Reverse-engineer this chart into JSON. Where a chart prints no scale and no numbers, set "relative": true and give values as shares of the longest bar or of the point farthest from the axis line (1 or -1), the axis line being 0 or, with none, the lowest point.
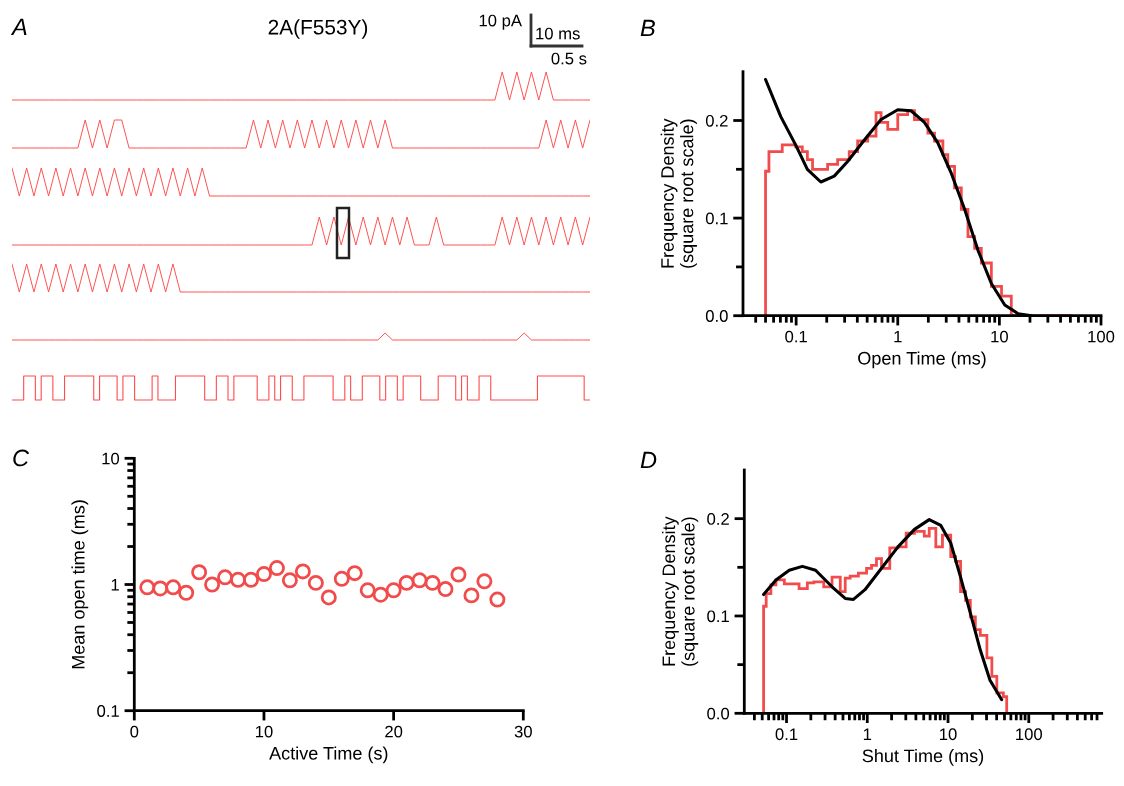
{
  "chart_data": [
    {
      "type": "line",
      "title": "2A(F553Y)",
      "annotations": [
        "A",
        "10 pA",
        "10 ms",
        "0.5 s"
      ],
      "relative": true,
      "tick_labels": false,
      "color": "#ff4d4d",
      "categories": [
        null,
        null,
        null,
        null,
        null,
        null,
        null,
        null,
        null,
        null,
        null,
        null,
        null,
        null,
        null,
        null,
        null,
        null,
        null,
        null,
        null,
        null,
        null,
        null,
        null,
        null,
        null,
        null,
        null,
        null,
        null,
        null,
        null,
        null,
        null,
        null,
        null,
        null,
        null,
        null,
        null,
        null,
        null,
        null,
        null,
        null,
        null,
        null,
        null,
        null,
        null,
        null,
        null,
        null,
        null,
        null,
        null,
        null,
        null,
        null,
        null,
        null,
        null,
        null,
        null,
        null,
        null,
        null,
        null,
        null,
        null,
        null,
        null,
        null,
        null,
        null,
        null,
        null,
        null,
        null
      ],
      "values": [
        0,
        0,
        0,
        0,
        0,
        0,
        0,
        0,
        0,
        0,
        0,
        0,
        0,
        0,
        0,
        0,
        0,
        0,
        0,
        0,
        0,
        0,
        0,
        0,
        0,
        0,
        0,
        0,
        0,
        0,
        0,
        0,
        0,
        0,
        0,
        0,
        0,
        0,
        0,
        0,
        0,
        0,
        0,
        0,
        0,
        0,
        0,
        0,
        0,
        0,
        0,
        0,
        0,
        0,
        0,
        0,
        0,
        0,
        0,
        0,
        0,
        0,
        0,
        0,
        0,
        0,
        0,
        1,
        0,
        1,
        0,
        1,
        0,
        1,
        0,
        0,
        0,
        0,
        0,
        0
      ]
    },
    {
      "type": "line",
      "relative": true,
      "tick_labels": false,
      "color": "#ff4d4d",
      "categories": [
        null,
        null,
        null,
        null,
        null,
        null,
        null,
        null,
        null,
        null,
        null,
        null,
        null,
        null,
        null,
        null,
        null,
        null,
        null,
        null,
        null,
        null,
        null,
        null,
        null,
        null,
        null,
        null,
        null,
        null,
        null,
        null,
        null,
        null,
        null,
        null,
        null,
        null,
        null,
        null,
        null,
        null,
        null,
        null,
        null,
        null,
        null,
        null,
        null,
        null,
        null,
        null,
        null,
        null,
        null,
        null,
        null,
        null,
        null,
        null,
        null,
        null,
        null,
        null,
        null,
        null,
        null,
        null,
        null,
        null,
        null,
        null,
        null,
        null,
        null,
        null,
        null,
        null,
        null,
        null
      ],
      "values": [
        0,
        0,
        0,
        0,
        0,
        0,
        0,
        0,
        0,
        0,
        1,
        0,
        1,
        0,
        1,
        1,
        0,
        0,
        0,
        0,
        0,
        0,
        0,
        0,
        0,
        0,
        0,
        0,
        0,
        0,
        0,
        0,
        0,
        1,
        0,
        1,
        0,
        1,
        0,
        1,
        0,
        1,
        0,
        1,
        0,
        1,
        0,
        1,
        0,
        1,
        0,
        1,
        0,
        0,
        0,
        0,
        0,
        0,
        0,
        0,
        0,
        0,
        0,
        0,
        0,
        0,
        0,
        0,
        0,
        0,
        0,
        0,
        0,
        1,
        0,
        1,
        0,
        1,
        0,
        1
      ]
    },
    {
      "type": "line",
      "relative": true,
      "tick_labels": false,
      "color": "#ff4d4d",
      "categories": [
        null,
        null,
        null,
        null,
        null,
        null,
        null,
        null,
        null,
        null,
        null,
        null,
        null,
        null,
        null,
        null,
        null,
        null,
        null,
        null,
        null,
        null,
        null,
        null,
        null,
        null,
        null,
        null,
        null,
        null,
        null,
        null,
        null,
        null,
        null,
        null,
        null,
        null,
        null,
        null,
        null,
        null,
        null,
        null,
        null,
        null,
        null,
        null,
        null,
        null,
        null,
        null,
        null,
        null,
        null,
        null,
        null,
        null,
        null,
        null,
        null,
        null,
        null,
        null,
        null,
        null,
        null,
        null,
        null,
        null,
        null,
        null,
        null,
        null,
        null,
        null,
        null,
        null,
        null,
        null
      ],
      "values": [
        1,
        0,
        1,
        0,
        1,
        0,
        1,
        0,
        1,
        0,
        1,
        0,
        1,
        0,
        1,
        0,
        1,
        0,
        1,
        0,
        1,
        0,
        1,
        0,
        1,
        0,
        1,
        0,
        0,
        0,
        0,
        0,
        0,
        0,
        0,
        0,
        0,
        0,
        0,
        0,
        0,
        0,
        0,
        0,
        0,
        0,
        0,
        0,
        0,
        0,
        0,
        0,
        0,
        0,
        0,
        0,
        0,
        0,
        0,
        0,
        0,
        0,
        0,
        0,
        0,
        0,
        0,
        0,
        0,
        0,
        0,
        0,
        0,
        0,
        0,
        0,
        0,
        0,
        0,
        0
      ]
    },
    {
      "type": "line",
      "relative": true,
      "tick_labels": false,
      "color": "#ff4d4d",
      "categories": [
        null,
        null,
        null,
        null,
        null,
        null,
        null,
        null,
        null,
        null,
        null,
        null,
        null,
        null,
        null,
        null,
        null,
        null,
        null,
        null,
        null,
        null,
        null,
        null,
        null,
        null,
        null,
        null,
        null,
        null,
        null,
        null,
        null,
        null,
        null,
        null,
        null,
        null,
        null,
        null,
        null,
        null,
        null,
        null,
        null,
        null,
        null,
        null,
        null,
        null,
        null,
        null,
        null,
        null,
        null,
        null,
        null,
        null,
        null,
        null,
        null,
        null,
        null,
        null,
        null,
        null,
        null,
        null,
        null,
        null,
        null,
        null,
        null,
        null,
        null,
        null,
        null,
        null,
        null,
        null
      ],
      "values": [
        0,
        0,
        0,
        0,
        0,
        0,
        0,
        0,
        0,
        0,
        0,
        0,
        0,
        0,
        0,
        0,
        0,
        0,
        0,
        0,
        0,
        0,
        0,
        0,
        0,
        0,
        0,
        0,
        0,
        0,
        0,
        0,
        0,
        0,
        0,
        0,
        0,
        0,
        0,
        0,
        0,
        0,
        1,
        0,
        1,
        0,
        1,
        0,
        1,
        0,
        1,
        0,
        1,
        0,
        1,
        0,
        0,
        0,
        1,
        0,
        0,
        0,
        0,
        0,
        0,
        0,
        0,
        1,
        0,
        1,
        0,
        1,
        0,
        1,
        0,
        1,
        0,
        1,
        0,
        1
      ]
    },
    {
      "type": "line",
      "relative": true,
      "tick_labels": false,
      "color": "#ff4d4d",
      "categories": [
        null,
        null,
        null,
        null,
        null,
        null,
        null,
        null,
        null,
        null,
        null,
        null,
        null,
        null,
        null,
        null,
        null,
        null,
        null,
        null,
        null,
        null,
        null,
        null,
        null,
        null,
        null,
        null,
        null,
        null,
        null,
        null,
        null,
        null,
        null,
        null,
        null,
        null,
        null,
        null,
        null,
        null,
        null,
        null,
        null,
        null,
        null,
        null,
        null,
        null,
        null,
        null,
        null,
        null,
        null,
        null,
        null,
        null,
        null,
        null,
        null,
        null,
        null,
        null,
        null,
        null,
        null,
        null,
        null,
        null,
        null,
        null,
        null,
        null,
        null,
        null,
        null,
        null,
        null,
        null
      ],
      "values": [
        1,
        0,
        1,
        0,
        1,
        0,
        1,
        0,
        1,
        0,
        1,
        0,
        1,
        0,
        1,
        0,
        1,
        0,
        1,
        0,
        1,
        0,
        1,
        0,
        0,
        0,
        0,
        0,
        0,
        0,
        0,
        0,
        0,
        0,
        0,
        0,
        0,
        0,
        0,
        0,
        0,
        0,
        0,
        0,
        0,
        0,
        0,
        0,
        0,
        0,
        0,
        0,
        0,
        0,
        0,
        0,
        0,
        0,
        0,
        0,
        0,
        0,
        0,
        0,
        0,
        0,
        0,
        0,
        0,
        0,
        0,
        0,
        0,
        0,
        0,
        0,
        0,
        0,
        0,
        0
      ]
    },
    {
      "type": "line",
      "relative": true,
      "tick_labels": false,
      "color": "#ff4d4d",
      "categories": [
        null,
        null,
        null,
        null,
        null,
        null,
        null,
        null,
        null,
        null,
        null,
        null,
        null,
        null,
        null,
        null,
        null,
        null,
        null,
        null,
        null,
        null,
        null,
        null,
        null,
        null,
        null,
        null,
        null,
        null,
        null,
        null,
        null,
        null,
        null,
        null,
        null,
        null,
        null,
        null,
        null,
        null,
        null,
        null,
        null,
        null,
        null,
        null,
        null,
        null,
        null,
        null,
        null,
        null,
        null,
        null,
        null,
        null,
        null,
        null,
        null,
        null,
        null,
        null,
        null,
        null,
        null,
        null,
        null,
        null,
        null,
        null,
        null,
        null,
        null,
        null,
        null,
        null,
        null,
        null
      ],
      "values": [
        0,
        0,
        0,
        0,
        0,
        0,
        0,
        0,
        0,
        0,
        0,
        0,
        0,
        0,
        0,
        0,
        0,
        0,
        0,
        0,
        0,
        0,
        0,
        0,
        0,
        0,
        0,
        0,
        0,
        0,
        0,
        0,
        0,
        0,
        0,
        0,
        0,
        0,
        0,
        0,
        0,
        0,
        0,
        0,
        0,
        0,
        0,
        0,
        0,
        0,
        0,
        1,
        0,
        0,
        0,
        0,
        0,
        0,
        0,
        0,
        0,
        0,
        0,
        0,
        0,
        0,
        0,
        0,
        0,
        0,
        1,
        0,
        0,
        0,
        0,
        0,
        0,
        0,
        0,
        0
      ]
    },
    {
      "type": "step",
      "relative": true,
      "tick_labels": false,
      "color": "#ff4d4d",
      "categories": [
        null,
        null,
        null,
        null,
        null,
        null,
        null,
        null,
        null,
        null,
        null,
        null,
        null,
        null,
        null,
        null,
        null,
        null,
        null,
        null,
        null,
        null,
        null,
        null,
        null,
        null,
        null,
        null,
        null,
        null,
        null,
        null,
        null,
        null,
        null,
        null,
        null,
        null,
        null,
        null,
        null,
        null,
        null,
        null,
        null,
        null,
        null,
        null,
        null,
        null,
        null,
        null,
        null,
        null,
        null,
        null,
        null,
        null,
        null,
        null,
        null,
        null,
        null,
        null,
        null,
        null,
        null,
        null,
        null,
        null,
        null,
        null,
        null,
        null,
        null,
        null,
        null,
        null,
        null,
        null,
        null,
        null,
        null,
        null,
        null,
        null,
        null,
        null,
        null,
        null,
        null,
        null,
        null,
        null,
        null,
        null,
        null,
        null,
        null,
        null
      ],
      "values": [
        0,
        0,
        1,
        1,
        0,
        1,
        1,
        0,
        0,
        1,
        1,
        1,
        1,
        1,
        0,
        1,
        1,
        1,
        0,
        1,
        1,
        0,
        0,
        0,
        1,
        0,
        0,
        0,
        1,
        1,
        1,
        1,
        1,
        0,
        0,
        1,
        1,
        0,
        1,
        1,
        1,
        1,
        0,
        0,
        1,
        0,
        1,
        1,
        0,
        0,
        1,
        1,
        1,
        1,
        1,
        0,
        0,
        1,
        0,
        0,
        1,
        1,
        1,
        0,
        1,
        1,
        0,
        1,
        1,
        1,
        0,
        0,
        0,
        1,
        1,
        1,
        0,
        1,
        0,
        0,
        1,
        1,
        0,
        0,
        0,
        0,
        0,
        0,
        0,
        0,
        1,
        1,
        1,
        1,
        1,
        1,
        1,
        1,
        0,
        0
      ]
    },
    {
      "type": "histogram",
      "annotations": [
        "B"
      ],
      "xlabel": "Open Time (ms)",
      "ylabel": "Frequency Density\n(square root scale)",
      "log": "x",
      "xlim": [
        0.03,
        100
      ],
      "ylim": [
        0,
        0.25
      ],
      "xticks": [
        {
          "value": 0.04,
          "label": null
        },
        {
          "value": 0.05,
          "label": null
        },
        {
          "value": 0.06,
          "label": null
        },
        {
          "value": 0.07,
          "label": null
        },
        {
          "value": 0.08,
          "label": null
        },
        {
          "value": 0.09,
          "label": null
        },
        0.1,
        {
          "value": 0.2,
          "label": null
        },
        {
          "value": 0.3,
          "label": null
        },
        {
          "value": 0.4,
          "label": null
        },
        {
          "value": 0.5,
          "label": null
        },
        {
          "value": 0.6,
          "label": null
        },
        {
          "value": 0.7,
          "label": null
        },
        {
          "value": 0.8,
          "label": null
        },
        {
          "value": 0.9,
          "label": null
        },
        1,
        {
          "value": 2,
          "label": null
        },
        {
          "value": 3,
          "label": null
        },
        {
          "value": 4,
          "label": null
        },
        {
          "value": 5,
          "label": null
        },
        {
          "value": 6,
          "label": null
        },
        {
          "value": 7,
          "label": null
        },
        {
          "value": 8,
          "label": null
        },
        {
          "value": 9,
          "label": null
        },
        10,
        {
          "value": 20,
          "label": null
        },
        {
          "value": 30,
          "label": null
        },
        {
          "value": 40,
          "label": null
        },
        {
          "value": 50,
          "label": null
        },
        {
          "value": 60,
          "label": null
        },
        {
          "value": 70,
          "label": null
        },
        {
          "value": 80,
          "label": null
        },
        {
          "value": 90,
          "label": null
        },
        100
      ],
      "yticks": [
        {
          "value": 0,
          "label": "0.0"
        },
        {
          "value": 0.05,
          "label": null
        },
        0.1,
        {
          "value": 0.15,
          "label": null
        },
        0.2
      ],
      "series": [
        {
          "type": "histogram",
          "color": "#f24b4b",
          "bins": [
            0.05,
            0.054,
            0.073,
            0.099,
            0.115,
            0.129,
            0.145,
            0.204,
            0.256,
            0.333,
            0.403,
            0.506,
            0.611,
            0.685,
            0.797,
            1.0,
            1.25,
            1.46,
            1.98,
            2.3,
            2.78,
            3.11,
            3.62,
            4.22,
            4.91,
            5.71,
            6.64,
            8.34,
            10.5,
            13.1,
            51.4
          ],
          "values": [
            0.148,
            0.168,
            0.175,
            0.173,
            0.168,
            0.16,
            0.15,
            0.155,
            0.16,
            0.168,
            0.179,
            0.184,
            0.208,
            0.198,
            0.191,
            0.206,
            0.21,
            0.201,
            0.187,
            0.179,
            0.165,
            0.153,
            0.131,
            0.109,
            0.081,
            0.069,
            0.054,
            0.03,
            0.02,
            0
          ]
        },
        {
          "type": "line",
          "color": "#000000",
          "x": [
            0.05,
            0.0706,
            0.1,
            0.129,
            0.175,
            0.237,
            0.321,
            0.469,
            0.685,
            1.0,
            1.35,
            1.83,
            2.48,
            3.36,
            4.55,
            6.16,
            8.34,
            11.3,
            15.3,
            20.7
          ],
          "values": [
            0.242,
            0.204,
            0.174,
            0.15,
            0.137,
            0.143,
            0.158,
            0.18,
            0.201,
            0.211,
            0.21,
            0.198,
            0.177,
            0.146,
            0.109,
            0.067,
            0.033,
            0.011,
            0.002,
            0.0
          ]
        }
      ]
    },
    {
      "type": "scatter",
      "annotations": [
        "C"
      ],
      "xlabel": "Active Time (s)",
      "ylabel": "Mean open time (ms)",
      "log": "y",
      "marker": "circle",
      "color": "#f24b4b",
      "xlim": [
        0,
        30
      ],
      "ylim": [
        0.1,
        10
      ],
      "xticks": [
        0,
        10,
        20,
        30
      ],
      "yticks": [
        0.1,
        {
          "value": 0.2,
          "label": null
        },
        {
          "value": 0.3,
          "label": null
        },
        {
          "value": 0.4,
          "label": null
        },
        {
          "value": 0.5,
          "label": null
        },
        {
          "value": 0.6,
          "label": null
        },
        {
          "value": 0.7,
          "label": null
        },
        {
          "value": 0.8,
          "label": null
        },
        {
          "value": 0.9,
          "label": null
        },
        1,
        {
          "value": 2,
          "label": null
        },
        {
          "value": 3,
          "label": null
        },
        {
          "value": 4,
          "label": null
        },
        {
          "value": 5,
          "label": null
        },
        {
          "value": 6,
          "label": null
        },
        {
          "value": 7,
          "label": null
        },
        {
          "value": 8,
          "label": null
        },
        {
          "value": 9,
          "label": null
        },
        10
      ],
      "x": [
        1,
        2,
        3,
        4,
        5,
        6,
        7,
        8,
        9,
        10,
        11,
        12,
        13,
        14,
        15,
        16,
        17,
        18,
        19,
        20,
        21,
        22,
        23,
        24,
        25,
        26,
        27,
        28
      ],
      "values": [
        0.95,
        0.93,
        0.95,
        0.86,
        1.25,
        1.0,
        1.14,
        1.09,
        1.09,
        1.21,
        1.35,
        1.08,
        1.27,
        1.03,
        0.79,
        1.11,
        1.23,
        0.9,
        0.83,
        0.9,
        1.03,
        1.08,
        1.03,
        0.92,
        1.2,
        0.82,
        1.06,
        0.76
      ]
    },
    {
      "type": "histogram",
      "annotations": [
        "D"
      ],
      "xlabel": "Shut Time (ms)",
      "ylabel": "Frequency Density\n(square root scale)",
      "log": "x",
      "xlim": [
        0.03,
        800
      ],
      "ylim": [
        0,
        0.25
      ],
      "xticks": [
        {
          "value": 0.04,
          "label": null
        },
        {
          "value": 0.05,
          "label": null
        },
        {
          "value": 0.06,
          "label": null
        },
        {
          "value": 0.07,
          "label": null
        },
        {
          "value": 0.08,
          "label": null
        },
        {
          "value": 0.09,
          "label": null
        },
        0.1,
        {
          "value": 0.2,
          "label": null
        },
        {
          "value": 0.3,
          "label": null
        },
        {
          "value": 0.4,
          "label": null
        },
        {
          "value": 0.5,
          "label": null
        },
        {
          "value": 0.6,
          "label": null
        },
        {
          "value": 0.7,
          "label": null
        },
        {
          "value": 0.8,
          "label": null
        },
        {
          "value": 0.9,
          "label": null
        },
        1,
        {
          "value": 2,
          "label": null
        },
        {
          "value": 3,
          "label": null
        },
        {
          "value": 4,
          "label": null
        },
        {
          "value": 5,
          "label": null
        },
        {
          "value": 6,
          "label": null
        },
        {
          "value": 7,
          "label": null
        },
        {
          "value": 8,
          "label": null
        },
        {
          "value": 9,
          "label": null
        },
        10,
        {
          "value": 20,
          "label": null
        },
        {
          "value": 30,
          "label": null
        },
        {
          "value": 40,
          "label": null
        },
        {
          "value": 50,
          "label": null
        },
        {
          "value": 60,
          "label": null
        },
        {
          "value": 70,
          "label": null
        },
        {
          "value": 80,
          "label": null
        },
        {
          "value": 90,
          "label": null
        },
        100,
        {
          "value": 200,
          "label": null
        },
        {
          "value": 300,
          "label": null
        },
        {
          "value": 400,
          "label": null
        },
        {
          "value": 500,
          "label": null
        },
        {
          "value": 600,
          "label": null
        },
        {
          "value": 700,
          "label": null
        }
      ],
      "yticks": [
        {
          "value": 0,
          "label": "0.0"
        },
        {
          "value": 0.05,
          "label": null
        },
        0.1,
        {
          "value": 0.15,
          "label": null
        },
        0.2
      ],
      "series": [
        {
          "type": "histogram",
          "color": "#f24b4b",
          "bins": [
            0.052,
            0.056,
            0.064,
            0.074,
            0.094,
            0.143,
            0.181,
            0.218,
            0.289,
            0.366,
            0.463,
            0.533,
            0.614,
            0.776,
            0.98,
            1.13,
            1.3,
            1.5,
            1.9,
            2.4,
            3.03,
            3.84,
            5.08,
            5.85,
            7.06,
            8.53,
            10.8,
            12.4,
            14.3,
            16.5,
            18.9,
            21.8,
            25.1,
            30.3,
            34.9,
            40.2,
            48.5,
            53.3
          ],
          "values": [
            0.11,
            0.123,
            0.132,
            0.137,
            0.133,
            0.128,
            0.134,
            0.135,
            0.13,
            0.14,
            0.125,
            0.139,
            0.141,
            0.144,
            0.149,
            0.152,
            0.159,
            0.149,
            0.17,
            0.171,
            0.185,
            0.187,
            0.182,
            0.19,
            0.171,
            0.183,
            0.161,
            0.156,
            0.125,
            0.116,
            0.099,
            0.086,
            0.08,
            0.057,
            0.038,
            0.021,
            0.017
          ]
        },
        {
          "type": "line",
          "color": "#000000",
          "x": [
            0.052,
            0.074,
            0.108,
            0.157,
            0.229,
            0.366,
            0.533,
            0.674,
            0.937,
            1.5,
            2.4,
            3.84,
            5.85,
            8.14,
            10.8,
            14.3,
            18.9,
            25.1,
            33.1,
            46.2
          ],
          "values": [
            0.122,
            0.137,
            0.147,
            0.151,
            0.147,
            0.13,
            0.118,
            0.117,
            0.127,
            0.149,
            0.171,
            0.189,
            0.199,
            0.193,
            0.175,
            0.14,
            0.103,
            0.065,
            0.034,
            0.014
          ]
        }
      ]
    }
  ]
}
